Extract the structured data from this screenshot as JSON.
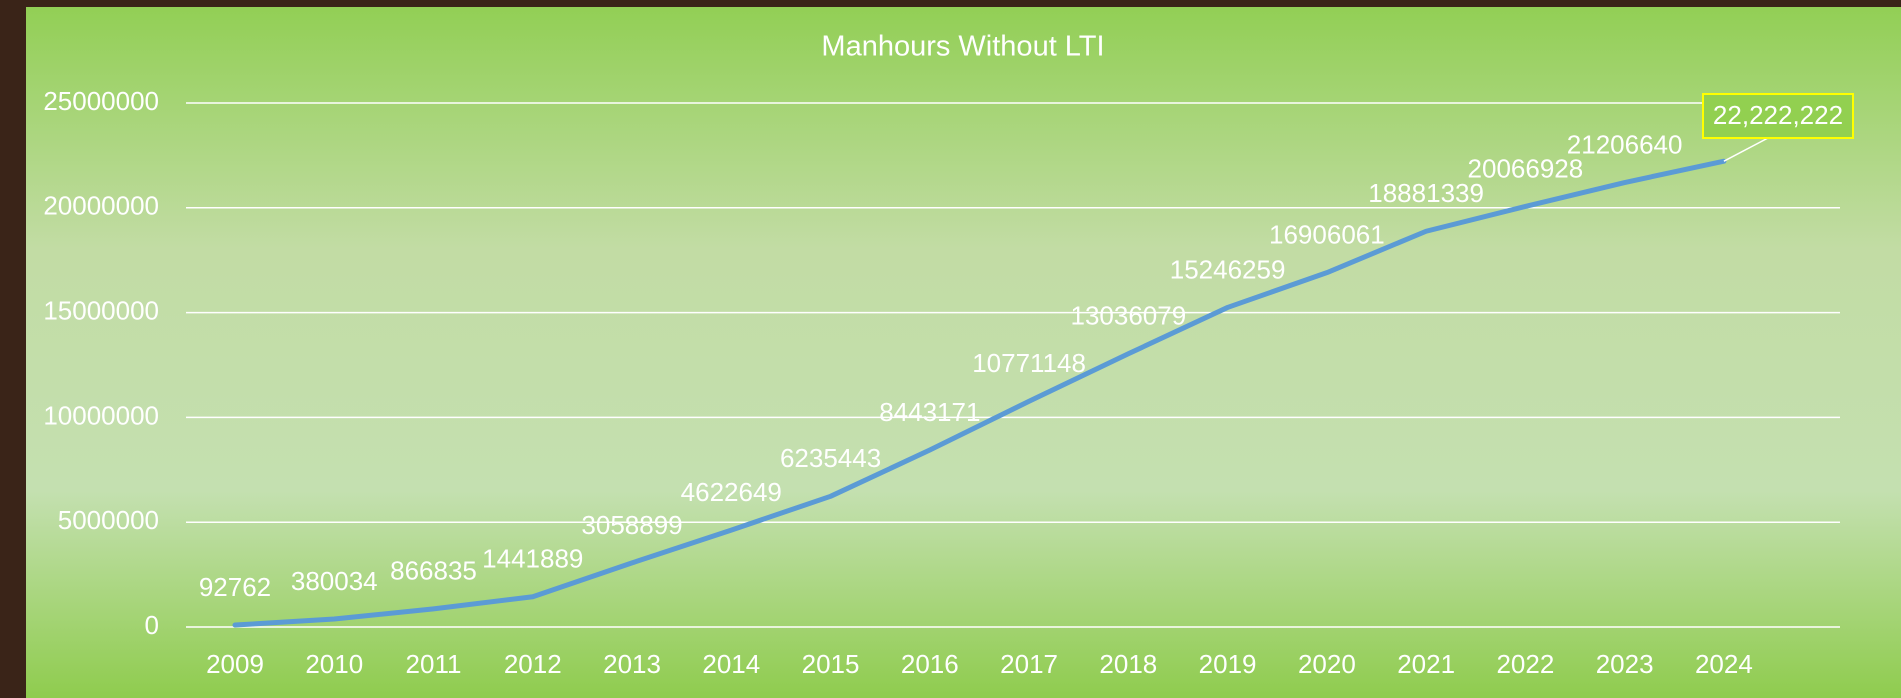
{
  "chart_data": {
    "type": "line",
    "title": "Manhours Without LTI",
    "categories": [
      "2009",
      "2010",
      "2011",
      "2012",
      "2013",
      "2014",
      "2015",
      "2016",
      "2017",
      "2018",
      "2019",
      "2020",
      "2021",
      "2022",
      "2023",
      "2024"
    ],
    "values": [
      92762,
      380034,
      866835,
      1441889,
      3058899,
      4622649,
      6235443,
      8443171,
      10771148,
      13036079,
      15246259,
      16906061,
      18881339,
      20066928,
      21206640,
      22222222
    ],
    "value_labels": [
      "92762",
      "380034",
      "866835",
      "1441889",
      "3058899",
      "4622649",
      "6235443",
      "8443171",
      "10771148",
      "13036079",
      "15246259",
      "16906061",
      "18881339",
      "20066928",
      "21206640",
      "22,222,222"
    ],
    "color": "#5b9bd5",
    "ylim": [
      0,
      25000000
    ],
    "yticks": [
      0,
      5000000,
      10000000,
      15000000,
      20000000,
      25000000
    ],
    "grid": true
  }
}
